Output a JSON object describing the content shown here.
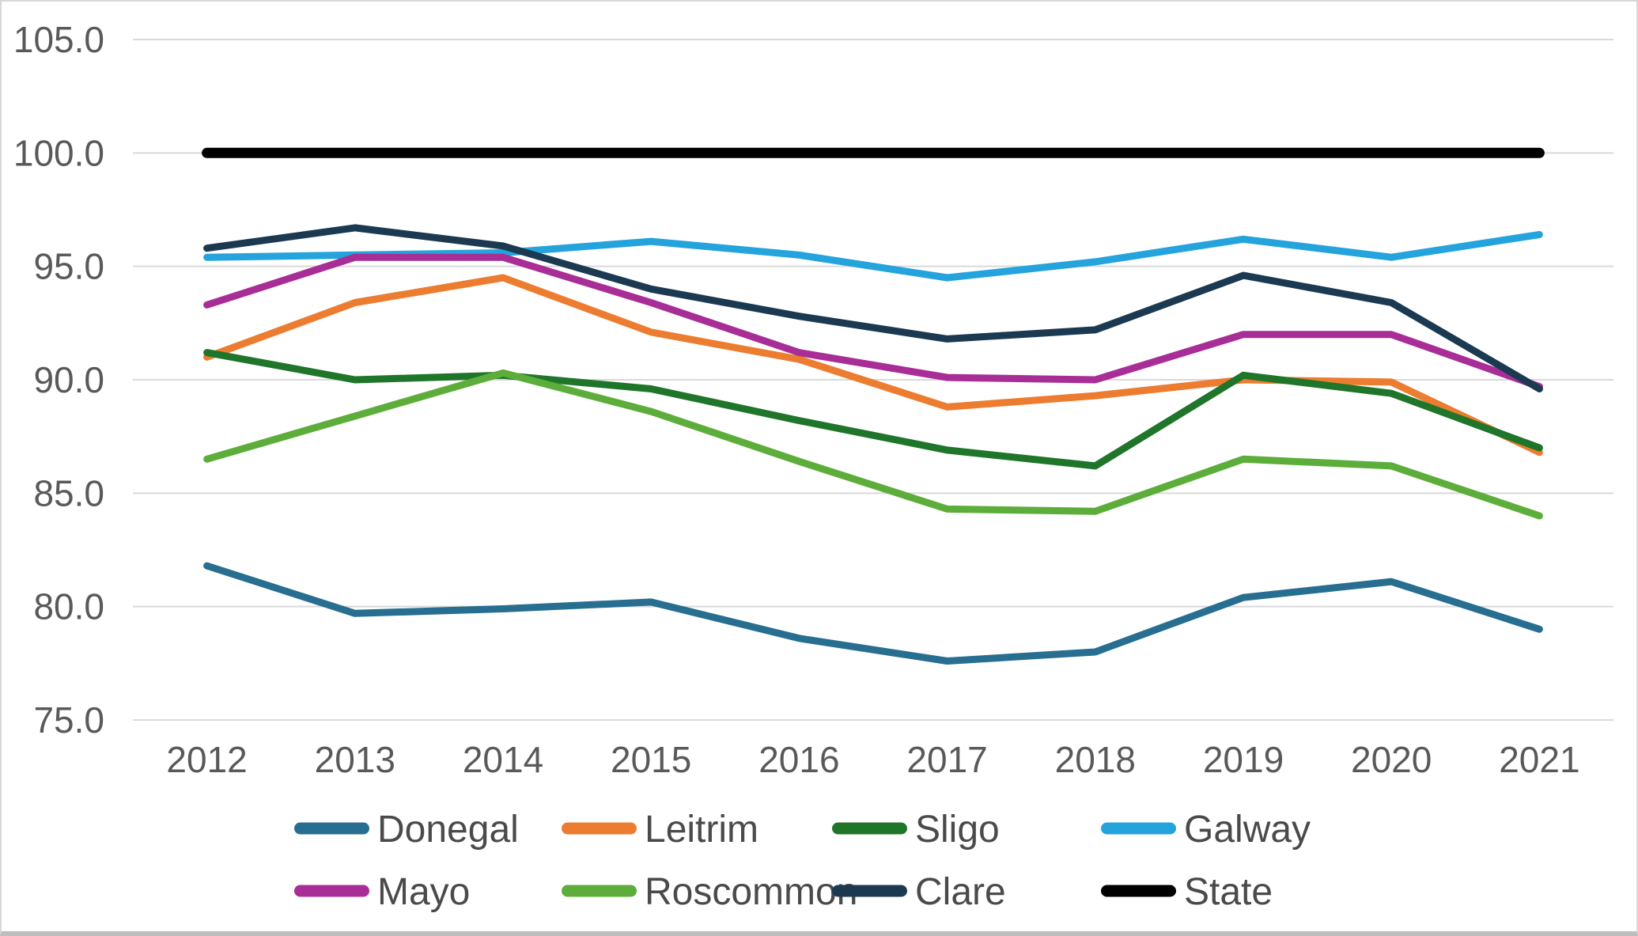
{
  "chart_data": {
    "type": "line",
    "title": "",
    "categories": [
      "2012",
      "2013",
      "2014",
      "2015",
      "2016",
      "2017",
      "2018",
      "2019",
      "2020",
      "2021"
    ],
    "series": [
      {
        "name": "Donegal",
        "color": "#276E91",
        "values": [
          81.8,
          79.7,
          79.9,
          80.2,
          78.6,
          77.6,
          78.0,
          80.4,
          81.1,
          79.0
        ]
      },
      {
        "name": "Leitrim",
        "color": "#EC7C30",
        "values": [
          91.0,
          93.4,
          94.5,
          92.1,
          90.9,
          88.8,
          89.3,
          90.0,
          89.9,
          86.8
        ]
      },
      {
        "name": "Sligo",
        "color": "#1F7529",
        "values": [
          91.2,
          90.0,
          90.2,
          89.6,
          88.2,
          86.9,
          86.2,
          90.2,
          89.4,
          87.0
        ]
      },
      {
        "name": "Galway",
        "color": "#24A3DC",
        "values": [
          95.4,
          95.5,
          95.6,
          96.1,
          95.5,
          94.5,
          95.2,
          96.2,
          95.4,
          96.4
        ]
      },
      {
        "name": "Mayo",
        "color": "#A92D96",
        "values": [
          93.3,
          95.4,
          95.4,
          93.4,
          91.2,
          90.1,
          90.0,
          92.0,
          92.0,
          89.7
        ]
      },
      {
        "name": "Roscommon",
        "color": "#5CAD3A",
        "values": [
          86.5,
          88.4,
          90.3,
          88.6,
          86.4,
          84.3,
          84.2,
          86.5,
          86.2,
          84.0
        ]
      },
      {
        "name": "Clare",
        "color": "#1B3A52",
        "values": [
          95.8,
          96.7,
          95.9,
          94.0,
          92.8,
          91.8,
          92.2,
          94.6,
          93.4,
          89.6
        ]
      },
      {
        "name": "State",
        "color": "#000000",
        "values": [
          100.0,
          100.0,
          100.0,
          100.0,
          100.0,
          100.0,
          100.0,
          100.0,
          100.0,
          100.0
        ],
        "thick": true
      }
    ],
    "xlabel": "",
    "ylabel": "",
    "ylim": [
      75,
      105
    ],
    "ytick_step": 5,
    "ytick_decimals": 1,
    "grid": true,
    "legend_position": "bottom",
    "legend_rows": [
      [
        "Donegal",
        "Leitrim",
        "Sligo",
        "Galway"
      ],
      [
        "Mayo",
        "Roscommon",
        "Clare",
        "State"
      ]
    ],
    "axis_text_color": "#595959",
    "legend_text_color": "#4A4A4A",
    "gridline_color": "#D9D9D9",
    "background": "#FFFFFF"
  }
}
